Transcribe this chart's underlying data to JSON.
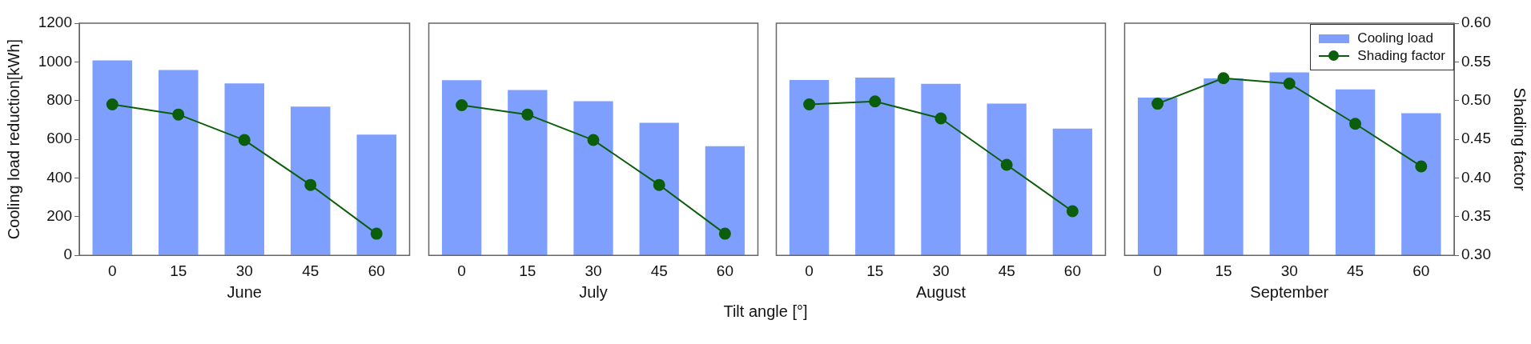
{
  "chart_data": [
    {
      "type": "bar",
      "xlabel": "June",
      "ylabel": "Cooling load reduction[kWh]",
      "categories": [
        "0",
        "15",
        "30",
        "45",
        "60"
      ],
      "ylim": [
        0,
        1200
      ],
      "yticks": [
        0,
        200,
        400,
        600,
        800,
        1000,
        1200
      ],
      "y2lim": [
        0.3,
        0.6
      ],
      "tick_labels": "xy",
      "grid": false,
      "legend": false,
      "series": [
        {
          "color": "#7f9fff",
          "values": [
            1008,
            958,
            889,
            769,
            624
          ]
        },
        {
          "type": "line",
          "axis": "y2",
          "color": "#0b5e0b",
          "marker": "circle",
          "line_style": "solid",
          "values": [
            0.495,
            0.482,
            0.449,
            0.391,
            0.328
          ]
        }
      ]
    },
    {
      "type": "bar",
      "xlabel": "July",
      "categories": [
        "0",
        "15",
        "30",
        "45",
        "60"
      ],
      "ylim": [
        0,
        1200
      ],
      "y2lim": [
        0.3,
        0.6
      ],
      "tick_labels": "x",
      "grid": false,
      "legend": false,
      "annotations": [
        "Tilt angle [°]"
      ],
      "series": [
        {
          "color": "#7f9fff",
          "values": [
            905,
            855,
            797,
            685,
            564
          ]
        },
        {
          "type": "line",
          "axis": "y2",
          "color": "#0b5e0b",
          "marker": "circle",
          "line_style": "solid",
          "values": [
            0.494,
            0.482,
            0.449,
            0.391,
            0.328
          ]
        }
      ]
    },
    {
      "type": "bar",
      "xlabel": "August",
      "categories": [
        "0",
        "15",
        "30",
        "45",
        "60"
      ],
      "ylim": [
        0,
        1200
      ],
      "y2lim": [
        0.3,
        0.6
      ],
      "tick_labels": "x",
      "grid": false,
      "legend": false,
      "series": [
        {
          "color": "#7f9fff",
          "values": [
            906,
            919,
            887,
            784,
            655
          ]
        },
        {
          "type": "line",
          "axis": "y2",
          "color": "#0b5e0b",
          "marker": "circle",
          "line_style": "solid",
          "values": [
            0.495,
            0.499,
            0.477,
            0.417,
            0.357
          ]
        }
      ]
    },
    {
      "type": "bar",
      "xlabel": "September",
      "y2label": "Shading factor",
      "categories": [
        "0",
        "15",
        "30",
        "45",
        "60"
      ],
      "ylim": [
        0,
        1200
      ],
      "y2lim": [
        0.3,
        0.6
      ],
      "y2ticks": [
        {
          "value": 0.3,
          "label": "0.30"
        },
        {
          "value": 0.35,
          "label": "0.35"
        },
        {
          "value": 0.4,
          "label": "0.40"
        },
        {
          "value": 0.45,
          "label": "0.45"
        },
        {
          "value": 0.5,
          "label": "0.50"
        },
        {
          "value": 0.55,
          "label": "0.55"
        },
        {
          "value": 0.6,
          "label": "0.60"
        }
      ],
      "tick_labels": "xy2",
      "grid": false,
      "legend": "top right",
      "series": [
        {
          "name": "Cooling load",
          "color": "#7f9fff",
          "values": [
            815,
            915,
            946,
            858,
            735
          ]
        },
        {
          "type": "line",
          "name": "Shading factor",
          "axis": "y2",
          "color": "#0b5e0b",
          "marker": "circle",
          "line_style": "solid",
          "values": [
            0.496,
            0.529,
            0.522,
            0.47,
            0.415
          ]
        }
      ]
    }
  ]
}
